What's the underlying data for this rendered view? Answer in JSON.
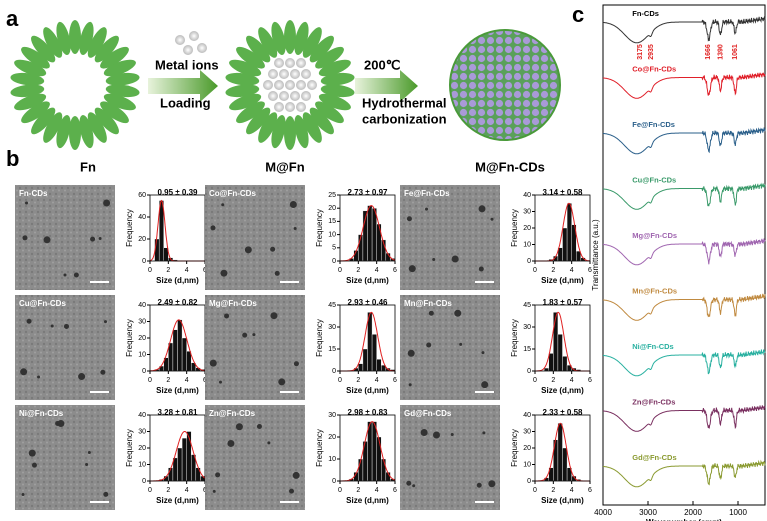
{
  "panel_labels": [
    "a",
    "b",
    "c"
  ],
  "schematic": {
    "metal_ions": "Metal ions",
    "loading": "Loading",
    "temperature": "200℃",
    "process_line1": "Hydrothermal",
    "process_line2": "carbonization",
    "stage_labels": [
      "Fn",
      "M@Fn",
      "M@Fn-CDs"
    ]
  },
  "histogram_axes": {
    "ylabel": "Frequency",
    "xlabel": "Size (d,nm)",
    "xlim": [
      0,
      6
    ],
    "xticks": [
      0,
      2,
      4,
      6
    ],
    "bins": [
      0,
      0.5,
      1,
      1.5,
      2,
      2.5,
      3,
      3.5,
      4,
      4.5,
      5,
      5.5,
      6
    ]
  },
  "samples": [
    {
      "name": "Fn-CDs",
      "size": "0.95 ± 0.39",
      "ylim": [
        0,
        60
      ],
      "yticks": [
        0,
        20,
        40,
        60
      ],
      "counts": [
        0,
        20,
        55,
        12,
        3,
        1,
        0,
        0,
        0,
        0,
        0,
        0
      ]
    },
    {
      "name": "Co@Fn-CDs",
      "size": "2.73 ± 0.97",
      "ylim": [
        0,
        25
      ],
      "yticks": [
        0,
        5,
        10,
        15,
        20,
        25
      ],
      "counts": [
        0,
        0,
        1,
        4,
        10,
        19,
        21,
        20,
        14,
        8,
        3,
        1
      ]
    },
    {
      "name": "Fe@Fn-CDs",
      "size": "3.14 ± 0.58",
      "ylim": [
        0,
        40
      ],
      "yticks": [
        0,
        10,
        20,
        30,
        40
      ],
      "counts": [
        0,
        0,
        0,
        1,
        3,
        8,
        20,
        35,
        22,
        6,
        2,
        0
      ]
    },
    {
      "name": "Cu@Fn-CDs",
      "size": "2.49 ± 0.82",
      "ylim": [
        0,
        40
      ],
      "yticks": [
        0,
        10,
        20,
        30,
        40
      ],
      "counts": [
        0,
        1,
        3,
        8,
        17,
        25,
        31,
        20,
        12,
        5,
        2,
        1
      ]
    },
    {
      "name": "Mg@Fn-CDs",
      "size": "2.93 ± 0.46",
      "ylim": [
        0,
        45
      ],
      "yticks": [
        0,
        15,
        30,
        45
      ],
      "counts": [
        0,
        0,
        0,
        2,
        5,
        15,
        40,
        25,
        8,
        4,
        2,
        1
      ]
    },
    {
      "name": "Mn@Fn-CDs",
      "size": "1.83 ± 0.57",
      "ylim": [
        0,
        45
      ],
      "yticks": [
        0,
        15,
        30,
        45
      ],
      "counts": [
        0,
        0,
        2,
        12,
        40,
        25,
        10,
        4,
        2,
        1,
        0,
        0
      ]
    },
    {
      "name": "Ni@Fn-CDs",
      "size": "3.28 ± 0.81",
      "ylim": [
        0,
        40
      ],
      "yticks": [
        0,
        10,
        20,
        30,
        40
      ],
      "counts": [
        0,
        0,
        1,
        3,
        8,
        14,
        20,
        26,
        30,
        16,
        8,
        3
      ]
    },
    {
      "name": "Zn@Fn-CDs",
      "size": "2.98 ± 0.83",
      "ylim": [
        0,
        30
      ],
      "yticks": [
        0,
        10,
        20,
        30
      ],
      "counts": [
        0,
        0,
        1,
        4,
        10,
        18,
        27,
        27,
        20,
        10,
        4,
        1
      ]
    },
    {
      "name": "Gd@Fn-CDs",
      "size": "2.33 ± 0.58",
      "ylim": [
        0,
        40
      ],
      "yticks": [
        0,
        10,
        20,
        30,
        40
      ],
      "counts": [
        0,
        0,
        2,
        8,
        25,
        35,
        20,
        8,
        3,
        1,
        0,
        0
      ]
    }
  ],
  "ftir": {
    "xlabel": "Wavenumber (cm⁻¹)",
    "ylabel": "Transmittance (a.u.)",
    "xlim": [
      4000,
      400
    ],
    "xticks": [
      4000,
      3000,
      2000,
      1000
    ],
    "peaks": [
      3175,
      2935,
      1666,
      1390,
      1061
    ],
    "curves": [
      {
        "name": "Fn-CDs",
        "color": "#333333"
      },
      {
        "name": "Co@Fn-CDs",
        "color": "#e0202a"
      },
      {
        "name": "Fe@Fn-CDs",
        "color": "#2a5f8a"
      },
      {
        "name": "Cu@Fn-CDs",
        "color": "#3a9a6a"
      },
      {
        "name": "Mg@Fn-CDs",
        "color": "#a066b0"
      },
      {
        "name": "Mn@Fn-CDs",
        "color": "#c08a40"
      },
      {
        "name": "Ni@Fn-CDs",
        "color": "#28b0a0"
      },
      {
        "name": "Zn@Fn-CDs",
        "color": "#7a3060"
      },
      {
        "name": "Gd@Fn-CDs",
        "color": "#8a9a30"
      }
    ]
  }
}
